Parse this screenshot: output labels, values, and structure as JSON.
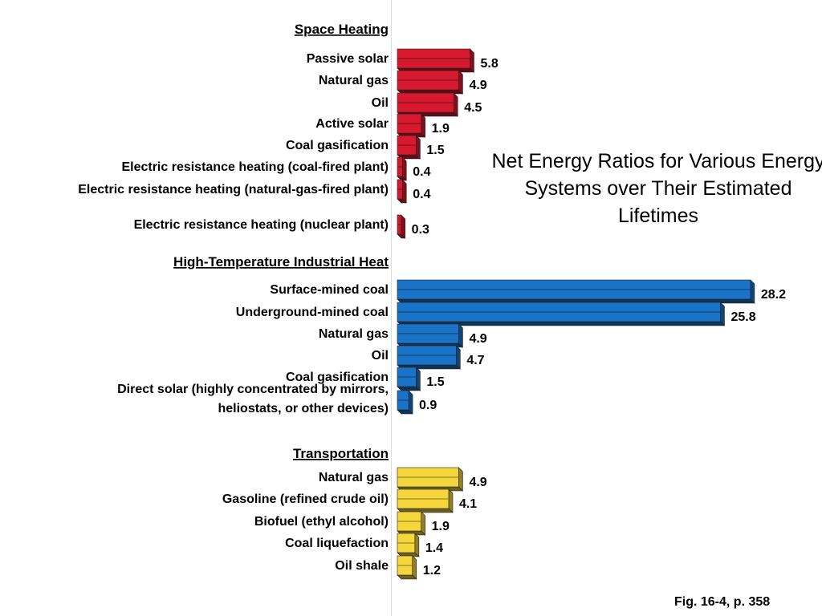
{
  "chart_data": {
    "type": "bar",
    "orientation": "horizontal",
    "title": "Net Energy Ratios for Various Energy Systems over Their Estimated Lifetimes",
    "caption": "Fig. 16-4, p. 358",
    "value_labels_shown": true,
    "sections": [
      {
        "name": "Space Heating",
        "color": "#d7192f",
        "categories": [
          "Passive solar",
          "Natural gas",
          "Oil",
          "Active solar",
          "Coal gasification",
          "Electric resistance heating (coal-fired plant)",
          "Electric resistance heating (natural-gas-fired plant)",
          "Electric resistance heating (nuclear plant)"
        ],
        "values": [
          5.8,
          4.9,
          4.5,
          1.9,
          1.5,
          0.4,
          0.4,
          0.3
        ],
        "value_text": [
          "5.8",
          "4.9",
          "4.5",
          "1.9",
          "1.5",
          "0.4",
          "0.4",
          "0.3"
        ]
      },
      {
        "name": "High-Temperature Industrial Heat",
        "color": "#1a73c6",
        "categories": [
          "Surface-mined coal",
          "Underground-mined coal",
          "Natural gas",
          "Oil",
          "Coal gasification",
          "Direct solar (highly concentrated by mirrors, heliostats, or other devices)"
        ],
        "category_lines": [
          [
            "Surface-mined coal"
          ],
          [
            "Underground-mined coal"
          ],
          [
            "Natural gas"
          ],
          [
            "Oil"
          ],
          [
            "Coal gasification"
          ],
          [
            "Direct solar (highly concentrated by mirrors,",
            "heliostats, or other devices)"
          ]
        ],
        "values": [
          28.2,
          25.8,
          4.9,
          4.7,
          1.5,
          0.9
        ],
        "value_text": [
          "28.2",
          "25.8",
          "4.9",
          "4.7",
          "1.5",
          "0.9"
        ]
      },
      {
        "name": "Transportation",
        "color": "#f5d63c",
        "categories": [
          "Natural gas",
          "Gasoline (refined crude oil)",
          "Biofuel (ethyl alcohol)",
          "Coal liquefaction",
          "Oil shale"
        ],
        "values": [
          4.9,
          4.1,
          1.9,
          1.4,
          1.2
        ],
        "value_text": [
          "4.9",
          "4.1",
          "1.9",
          "1.4",
          "1.2"
        ]
      }
    ]
  }
}
